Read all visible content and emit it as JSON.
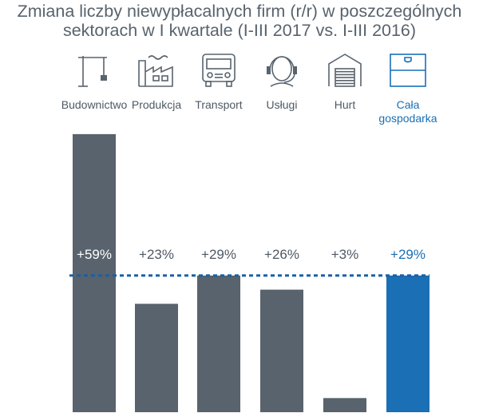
{
  "title_line1": "Zmiana liczby niewypłacalnych firm (r/r) w poszczególnych",
  "title_line2": "sektorach w I kwartale (I-III 2017 vs. I-III 2016)",
  "colors": {
    "sector": "#58636d",
    "highlight": "#1a6fb5",
    "text": "#4e5963"
  },
  "chart_data": {
    "type": "bar",
    "title": "Zmiana liczby niewypłacalnych firm (r/r) w poszczególnych sektorach w I kwartale (I-III 2017 vs. I-III 2016)",
    "categories": [
      {
        "label": [
          "Budownictwo"
        ],
        "icon": "crane-icon"
      },
      {
        "label": [
          "Produkcja"
        ],
        "icon": "factory-icon"
      },
      {
        "label": [
          "Transport"
        ],
        "icon": "truck-icon"
      },
      {
        "label": [
          "Usługi"
        ],
        "icon": "headset-icon"
      },
      {
        "label": [
          "Hurt"
        ],
        "icon": "warehouse-icon"
      },
      {
        "label": [
          "Cała",
          "gospodarka"
        ],
        "icon": "flag-icon",
        "highlight": true
      }
    ],
    "values": [
      59,
      23,
      29,
      26,
      3,
      29
    ],
    "value_labels": [
      "+59%",
      "+23%",
      "+29%",
      "+26%",
      "+3%",
      "+29%"
    ],
    "reference_line": {
      "value": 29,
      "style": "dashed"
    },
    "ylim": [
      0,
      60
    ]
  }
}
